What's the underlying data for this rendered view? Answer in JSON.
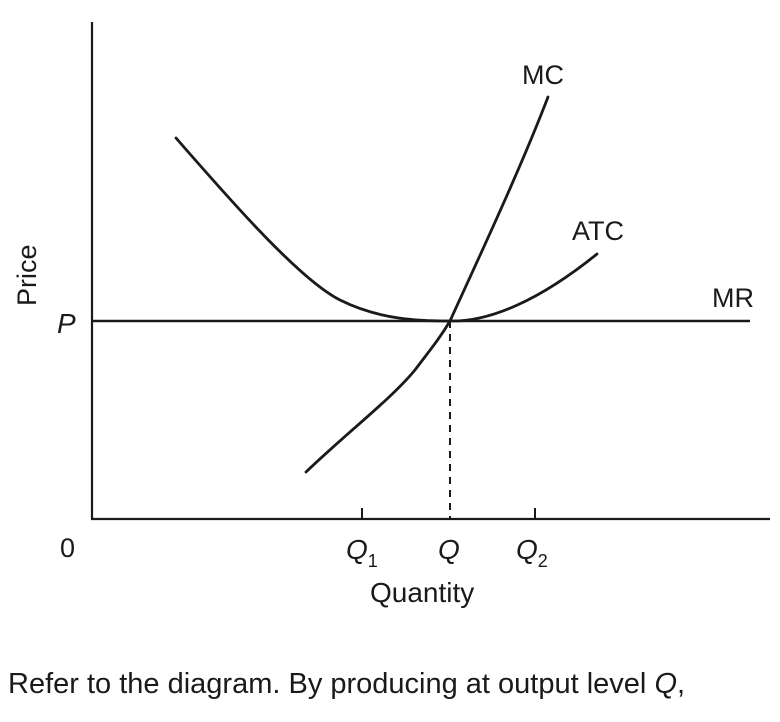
{
  "diagram": {
    "y_axis_label": "Price",
    "x_axis_label": "Quantity",
    "origin_label": "0",
    "price_label": "P",
    "curves": {
      "mc": "MC",
      "atc": "ATC",
      "mr": "MR"
    },
    "quantity_ticks": [
      {
        "label": "Q",
        "subscript": "1"
      },
      {
        "label": "Q",
        "subscript": ""
      },
      {
        "label": "Q",
        "subscript": "2"
      }
    ]
  },
  "question": {
    "text": "Refer to the diagram. By producing at output level ",
    "variable": "Q",
    "suffix": ","
  }
}
